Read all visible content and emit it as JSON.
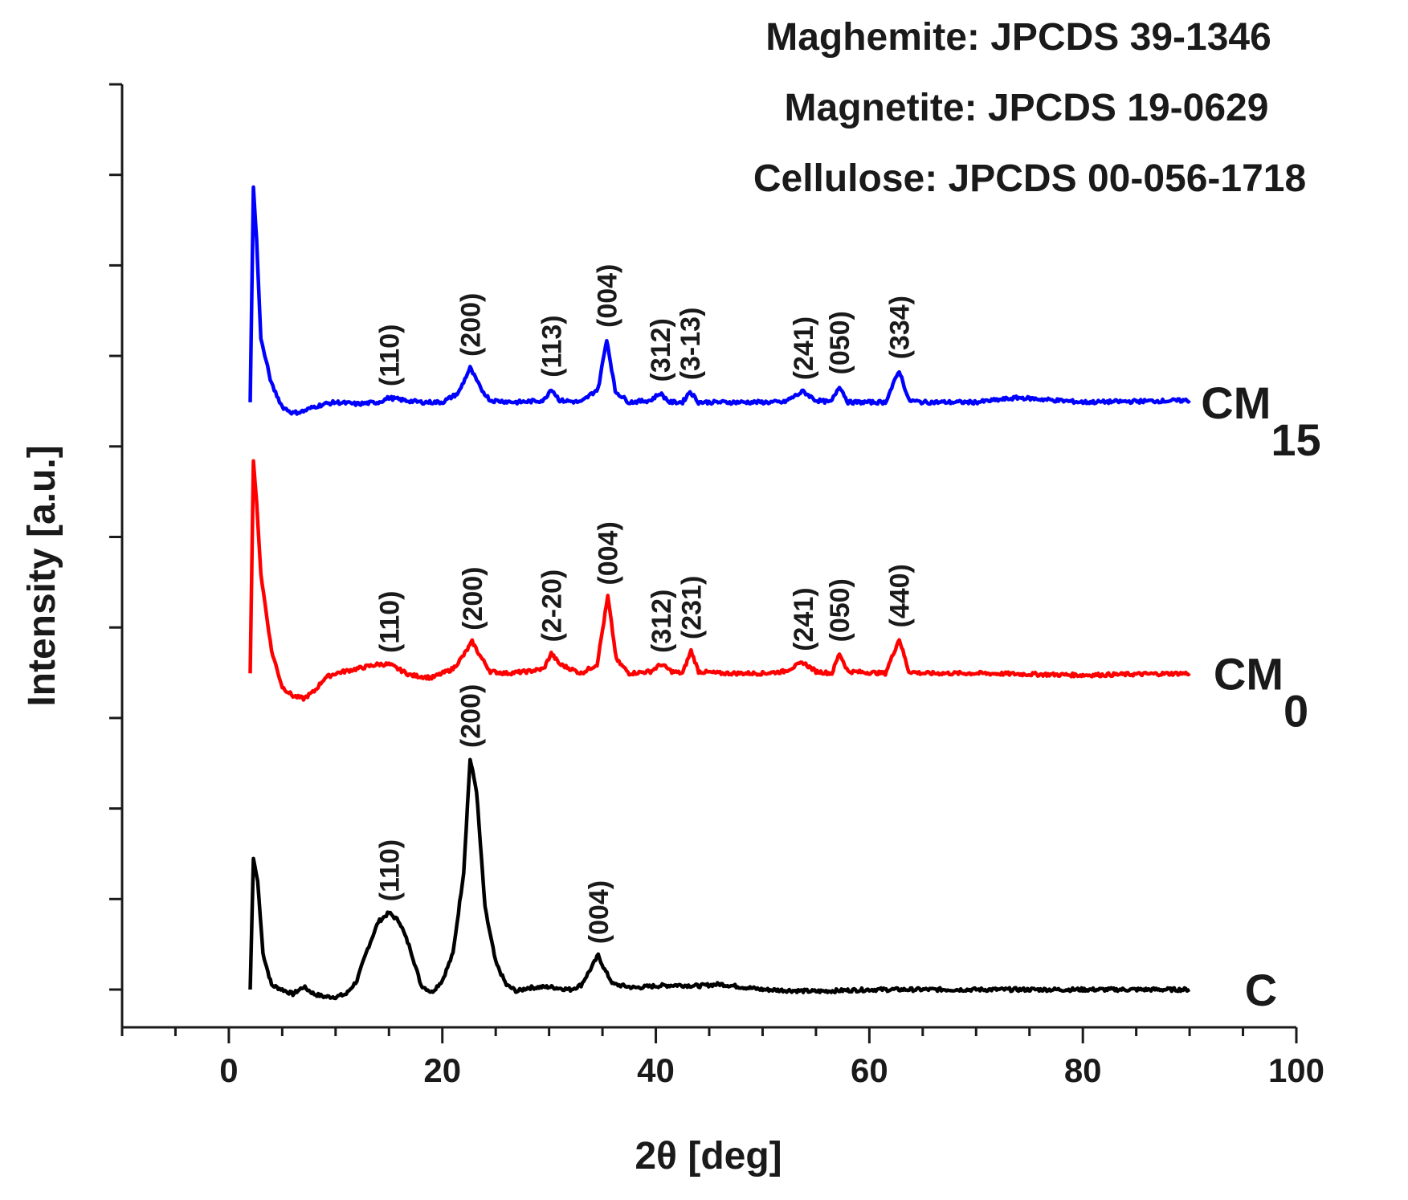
{
  "chart_data": {
    "type": "line",
    "title": "",
    "xlabel": "2θ [deg]",
    "ylabel": "Intensity [a.u.]",
    "xlim": [
      -10,
      100
    ],
    "xticks": [
      0,
      20,
      40,
      60,
      80,
      100
    ],
    "ylim": [
      0,
      10
    ],
    "y_tick_count": 11,
    "y_tick_labels_shown": false,
    "grid": false,
    "references": [
      "Maghemite: JPCDS 39-1346",
      "Magnetite: JPCDS 19-0629",
      "Cellulose: JPCDS 00-056-1718"
    ],
    "series": [
      {
        "name": "C",
        "label_main": "C",
        "label_sub": "",
        "color": "#000000",
        "baseline": 0.0,
        "points": [
          [
            2.0,
            0.0
          ],
          [
            2.3,
            1.45
          ],
          [
            2.7,
            1.2
          ],
          [
            3.2,
            0.4
          ],
          [
            4.0,
            0.05
          ],
          [
            5.0,
            0.0
          ],
          [
            6.0,
            -0.05
          ],
          [
            7.0,
            0.03
          ],
          [
            8.0,
            -0.05
          ],
          [
            9.0,
            -0.08
          ],
          [
            10.0,
            -0.08
          ],
          [
            11.0,
            -0.05
          ],
          [
            12.0,
            0.1
          ],
          [
            13.0,
            0.45
          ],
          [
            14.0,
            0.75
          ],
          [
            15.0,
            0.85
          ],
          [
            16.0,
            0.75
          ],
          [
            17.0,
            0.45
          ],
          [
            18.0,
            0.05
          ],
          [
            19.0,
            -0.03
          ],
          [
            20.0,
            0.1
          ],
          [
            21.0,
            0.4
          ],
          [
            22.0,
            1.3
          ],
          [
            22.6,
            2.55
          ],
          [
            23.2,
            2.2
          ],
          [
            24.0,
            0.9
          ],
          [
            25.0,
            0.3
          ],
          [
            26.0,
            0.05
          ],
          [
            27.0,
            -0.02
          ],
          [
            28.0,
            0.02
          ],
          [
            30.0,
            0.03
          ],
          [
            32.0,
            0.0
          ],
          [
            33.0,
            0.05
          ],
          [
            34.0,
            0.25
          ],
          [
            34.6,
            0.38
          ],
          [
            35.2,
            0.22
          ],
          [
            36.0,
            0.06
          ],
          [
            38.0,
            0.02
          ],
          [
            40.0,
            0.04
          ],
          [
            42.0,
            0.05
          ],
          [
            44.0,
            0.04
          ],
          [
            46.0,
            0.06
          ],
          [
            48.0,
            0.03
          ],
          [
            50.0,
            0.0
          ],
          [
            55.0,
            -0.02
          ],
          [
            60.0,
            0.0
          ],
          [
            70.0,
            0.0
          ],
          [
            80.0,
            0.0
          ],
          [
            90.0,
            0.0
          ]
        ],
        "peaks": [
          {
            "hkl": "(110)",
            "x": 15.0
          },
          {
            "hkl": "(200)",
            "x": 22.6
          },
          {
            "hkl": "(004)",
            "x": 34.6
          }
        ]
      },
      {
        "name": "CM0",
        "label_main": "CM",
        "label_sub": "0",
        "color": "#ff0000",
        "baseline": 3.5,
        "points": [
          [
            2.0,
            3.5
          ],
          [
            2.3,
            5.85
          ],
          [
            2.6,
            5.4
          ],
          [
            3.0,
            4.6
          ],
          [
            4.0,
            3.75
          ],
          [
            5.0,
            3.35
          ],
          [
            6.0,
            3.25
          ],
          [
            7.0,
            3.22
          ],
          [
            8.0,
            3.3
          ],
          [
            9.0,
            3.45
          ],
          [
            10.0,
            3.5
          ],
          [
            12.0,
            3.55
          ],
          [
            14.0,
            3.6
          ],
          [
            15.0,
            3.6
          ],
          [
            17.0,
            3.48
          ],
          [
            19.0,
            3.45
          ],
          [
            21.0,
            3.55
          ],
          [
            22.0,
            3.7
          ],
          [
            22.8,
            3.85
          ],
          [
            23.5,
            3.7
          ],
          [
            24.5,
            3.52
          ],
          [
            26.0,
            3.5
          ],
          [
            28.0,
            3.52
          ],
          [
            29.5,
            3.55
          ],
          [
            30.2,
            3.72
          ],
          [
            31.0,
            3.6
          ],
          [
            33.0,
            3.5
          ],
          [
            34.5,
            3.6
          ],
          [
            35.5,
            4.35
          ],
          [
            36.3,
            3.65
          ],
          [
            37.5,
            3.5
          ],
          [
            39.5,
            3.52
          ],
          [
            40.5,
            3.6
          ],
          [
            41.5,
            3.52
          ],
          [
            42.5,
            3.5
          ],
          [
            43.3,
            3.75
          ],
          [
            44.0,
            3.52
          ],
          [
            46.0,
            3.5
          ],
          [
            50.0,
            3.5
          ],
          [
            52.0,
            3.52
          ],
          [
            53.8,
            3.62
          ],
          [
            55.0,
            3.52
          ],
          [
            56.5,
            3.5
          ],
          [
            57.2,
            3.72
          ],
          [
            58.0,
            3.52
          ],
          [
            61.5,
            3.5
          ],
          [
            62.8,
            3.88
          ],
          [
            63.7,
            3.52
          ],
          [
            65.0,
            3.5
          ],
          [
            70.0,
            3.5
          ],
          [
            80.0,
            3.48
          ],
          [
            90.0,
            3.5
          ]
        ],
        "peaks": [
          {
            "hkl": "(110)",
            "x": 15.0
          },
          {
            "hkl": "(200)",
            "x": 22.8
          },
          {
            "hkl": "(2-20)",
            "x": 30.2
          },
          {
            "hkl": "(004)",
            "x": 35.5
          },
          {
            "hkl": "(312)",
            "x": 40.5
          },
          {
            "hkl": "(231)",
            "x": 43.3
          },
          {
            "hkl": "(241)",
            "x": 53.8
          },
          {
            "hkl": "(050)",
            "x": 57.2
          },
          {
            "hkl": "(440)",
            "x": 62.8
          }
        ]
      },
      {
        "name": "CM15",
        "label_main": "CM",
        "label_sub": "15",
        "color": "#0000ff",
        "baseline": 6.5,
        "points": [
          [
            2.0,
            6.5
          ],
          [
            2.3,
            8.88
          ],
          [
            2.6,
            8.3
          ],
          [
            3.0,
            7.2
          ],
          [
            4.0,
            6.7
          ],
          [
            5.0,
            6.45
          ],
          [
            6.0,
            6.38
          ],
          [
            7.0,
            6.4
          ],
          [
            8.0,
            6.45
          ],
          [
            9.0,
            6.48
          ],
          [
            10.0,
            6.5
          ],
          [
            12.0,
            6.48
          ],
          [
            14.0,
            6.5
          ],
          [
            15.0,
            6.55
          ],
          [
            16.5,
            6.52
          ],
          [
            18.0,
            6.5
          ],
          [
            20.0,
            6.5
          ],
          [
            21.5,
            6.6
          ],
          [
            22.6,
            6.88
          ],
          [
            23.6,
            6.65
          ],
          [
            24.5,
            6.52
          ],
          [
            27.0,
            6.5
          ],
          [
            29.5,
            6.52
          ],
          [
            30.2,
            6.65
          ],
          [
            31.0,
            6.52
          ],
          [
            33.0,
            6.5
          ],
          [
            34.6,
            6.65
          ],
          [
            35.4,
            7.2
          ],
          [
            36.2,
            6.62
          ],
          [
            37.5,
            6.5
          ],
          [
            39.5,
            6.52
          ],
          [
            40.4,
            6.6
          ],
          [
            41.3,
            6.5
          ],
          [
            42.5,
            6.5
          ],
          [
            43.2,
            6.62
          ],
          [
            44.0,
            6.5
          ],
          [
            48.0,
            6.5
          ],
          [
            52.0,
            6.5
          ],
          [
            53.8,
            6.62
          ],
          [
            55.0,
            6.52
          ],
          [
            56.4,
            6.5
          ],
          [
            57.2,
            6.68
          ],
          [
            58.0,
            6.5
          ],
          [
            61.5,
            6.5
          ],
          [
            62.8,
            6.85
          ],
          [
            63.7,
            6.52
          ],
          [
            65.0,
            6.5
          ],
          [
            70.0,
            6.5
          ],
          [
            74.0,
            6.55
          ],
          [
            80.0,
            6.5
          ],
          [
            90.0,
            6.52
          ]
        ],
        "peaks": [
          {
            "hkl": "(110)",
            "x": 15.0
          },
          {
            "hkl": "(200)",
            "x": 22.6
          },
          {
            "hkl": "(113)",
            "x": 30.2
          },
          {
            "hkl": "(004)",
            "x": 35.4
          },
          {
            "hkl": "(312)",
            "x": 40.4
          },
          {
            "hkl": "(3-13)",
            "x": 43.2
          },
          {
            "hkl": "(241)",
            "x": 53.8
          },
          {
            "hkl": "(050)",
            "x": 57.2
          },
          {
            "hkl": "(334)",
            "x": 62.8
          }
        ]
      }
    ]
  }
}
